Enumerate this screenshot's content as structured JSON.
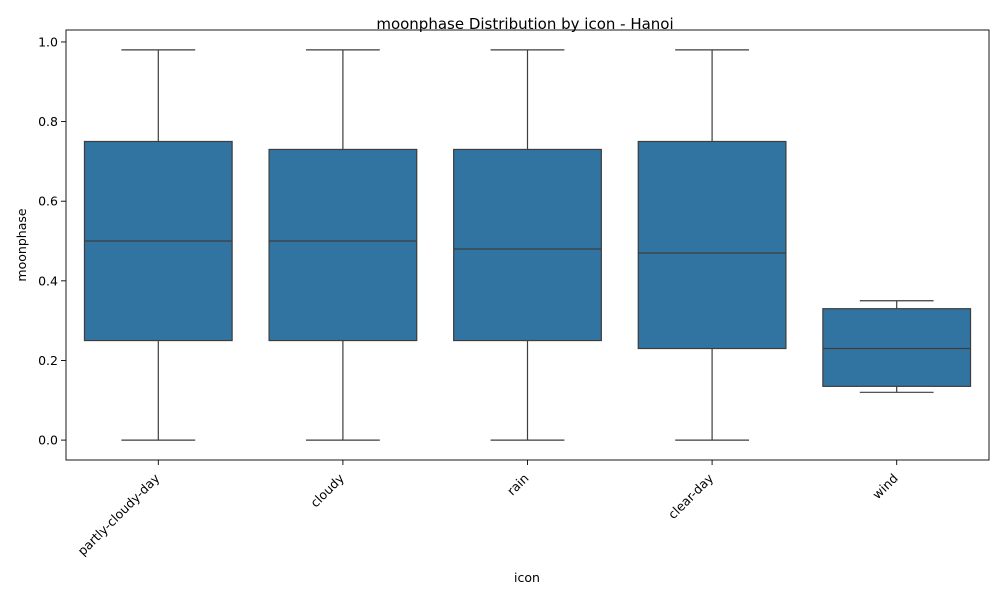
{
  "chart_data": {
    "type": "box",
    "title": "moonphase Distribution by icon - Hanoi",
    "xlabel": "icon",
    "ylabel": "moonphase",
    "ylim": [
      -0.05,
      1.03
    ],
    "yticks": [
      "0.0",
      "0.2",
      "0.4",
      "0.6",
      "0.8",
      "1.0"
    ],
    "ytick_values": [
      0.0,
      0.2,
      0.4,
      0.6,
      0.8,
      1.0
    ],
    "grid": false,
    "color": "#3274a1",
    "edge_color": "#3d3d3d",
    "categories": [
      "partly-cloudy-day",
      "cloudy",
      "rain",
      "clear-day",
      "wind"
    ],
    "boxes": [
      {
        "category": "partly-cloudy-day",
        "whisker_low": 0.0,
        "q1": 0.25,
        "median": 0.5,
        "q3": 0.75,
        "whisker_high": 0.98
      },
      {
        "category": "cloudy",
        "whisker_low": 0.0,
        "q1": 0.25,
        "median": 0.5,
        "q3": 0.73,
        "whisker_high": 0.98
      },
      {
        "category": "rain",
        "whisker_low": 0.0,
        "q1": 0.25,
        "median": 0.48,
        "q3": 0.73,
        "whisker_high": 0.98
      },
      {
        "category": "clear-day",
        "whisker_low": 0.0,
        "q1": 0.23,
        "median": 0.47,
        "q3": 0.75,
        "whisker_high": 0.98
      },
      {
        "category": "wind",
        "whisker_low": 0.12,
        "q1": 0.135,
        "median": 0.23,
        "q3": 0.33,
        "whisker_high": 0.35
      }
    ]
  }
}
